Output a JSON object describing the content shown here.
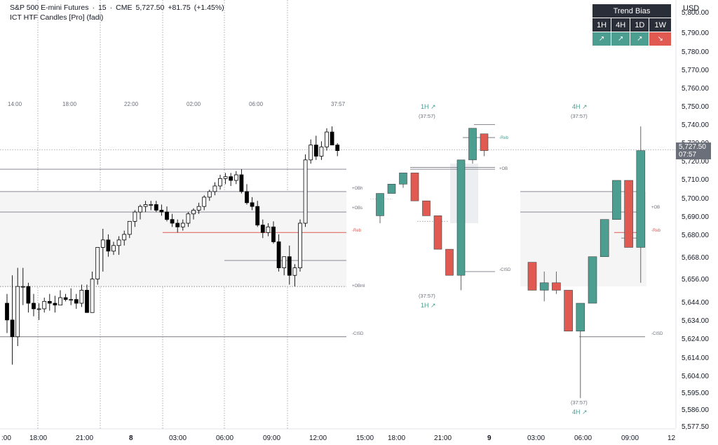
{
  "legend": {
    "symbol": "S&P 500 E-mini Futures",
    "interval": "15",
    "exchange": "CME",
    "last": "5,727.50",
    "change": "+81.75",
    "change_pct": "(+1.45%)",
    "indicator": "ICT HTF Candles [Pro] (fadi)"
  },
  "trend_bias": {
    "title": "Trend Bias",
    "timeframes": [
      "1H",
      "4H",
      "1D",
      "1W"
    ],
    "arrows": [
      "↗",
      "↗",
      "↗",
      "↘"
    ],
    "states": [
      "up",
      "up",
      "up",
      "down"
    ]
  },
  "price_axis": {
    "currency": "USD",
    "ticks": [
      "5,800.00",
      "5,790.00",
      "5,780.00",
      "5,770.00",
      "5,760.00",
      "5,750.00",
      "5,740.00",
      "5,730.00",
      "5,720.00",
      "5,710.00",
      "5,700.00",
      "5,690.00",
      "5,680.00",
      "5,668.00",
      "5,656.00",
      "5,644.00",
      "5,634.00",
      "5,624.00",
      "5,614.00",
      "5,604.00",
      "5,595.00",
      "5,586.00",
      "5,577.50"
    ],
    "last_price": "5,727.50",
    "countdown": "07:57"
  },
  "time_axis": {
    "ticks": [
      ":00",
      "18:00",
      "21:00",
      "8",
      "03:00",
      "06:00",
      "09:00",
      "12:00",
      "15:00",
      "18:00",
      "21:00",
      "9",
      "03:00",
      "06:00",
      "09:00",
      "12"
    ]
  },
  "top_time_labels": [
    "14:00",
    "18:00",
    "22:00",
    "02:00",
    "06:00",
    "37:57"
  ],
  "level_labels": {
    "obh": "+OBh",
    "obs": "+OBs",
    "reb": "-Reb",
    "obml": "+OBml",
    "cisd": "-CISD",
    "ob": "+OB"
  },
  "htf_panels": [
    {
      "label": "1H ↗",
      "timer": "(37:57)"
    },
    {
      "label": "4H ↗",
      "timer": "(37:57)"
    }
  ],
  "colors": {
    "bull": "#4c9e90",
    "bear": "#e05a52",
    "ltf_candle": "#000000",
    "reb_line": "#e05a52",
    "text_muted": "#6b6f7a"
  },
  "chart_data": {
    "type": "candlestick",
    "title": "S&P 500 E-mini Futures · 15 · CME",
    "ylim": [
      5577.5,
      5800
    ],
    "ltf_candles": [
      [
        5645,
        5650,
        5629,
        5636
      ],
      [
        5636,
        5660,
        5612,
        5627
      ],
      [
        5627,
        5664,
        5622,
        5654
      ],
      [
        5654,
        5664,
        5644,
        5654
      ],
      [
        5654,
        5656,
        5640,
        5645
      ],
      [
        5645,
        5650,
        5638,
        5642
      ],
      [
        5642,
        5645,
        5636,
        5642
      ],
      [
        5642,
        5648,
        5640,
        5646
      ],
      [
        5646,
        5650,
        5641,
        5645
      ],
      [
        5645,
        5649,
        5640,
        5644
      ],
      [
        5644,
        5652,
        5644,
        5648
      ],
      [
        5648,
        5650,
        5646,
        5647
      ],
      [
        5647,
        5653,
        5644,
        5647
      ],
      [
        5647,
        5650,
        5642,
        5645
      ],
      [
        5645,
        5655,
        5643,
        5652
      ],
      [
        5652,
        5655,
        5640,
        5640
      ],
      [
        5640,
        5662,
        5640,
        5658
      ],
      [
        5658,
        5675,
        5655,
        5675
      ],
      [
        5675,
        5685,
        5662,
        5679
      ],
      [
        5679,
        5682,
        5670,
        5673
      ],
      [
        5673,
        5678,
        5671,
        5676
      ],
      [
        5676,
        5681,
        5671,
        5679
      ],
      [
        5679,
        5684,
        5676,
        5682
      ],
      [
        5682,
        5689,
        5680,
        5689
      ],
      [
        5689,
        5695,
        5686,
        5694
      ],
      [
        5694,
        5698,
        5690,
        5697
      ],
      [
        5697,
        5700,
        5694,
        5698
      ],
      [
        5698,
        5700,
        5695,
        5698
      ],
      [
        5698,
        5700,
        5694,
        5695
      ],
      [
        5695,
        5698,
        5692,
        5694
      ],
      [
        5694,
        5697,
        5689,
        5690
      ],
      [
        5690,
        5693,
        5686,
        5688
      ],
      [
        5688,
        5690,
        5683,
        5686
      ],
      [
        5686,
        5690,
        5684,
        5688
      ],
      [
        5688,
        5694,
        5686,
        5693
      ],
      [
        5693,
        5696,
        5690,
        5695
      ],
      [
        5695,
        5699,
        5693,
        5697
      ],
      [
        5697,
        5703,
        5695,
        5702
      ],
      [
        5702,
        5706,
        5700,
        5705
      ],
      [
        5705,
        5710,
        5703,
        5708
      ],
      [
        5708,
        5714,
        5706,
        5712
      ],
      [
        5712,
        5715,
        5709,
        5713
      ],
      [
        5713,
        5715,
        5708,
        5711
      ],
      [
        5711,
        5716,
        5709,
        5714
      ],
      [
        5714,
        5717,
        5704,
        5705
      ],
      [
        5705,
        5709,
        5698,
        5699
      ],
      [
        5699,
        5702,
        5695,
        5697
      ],
      [
        5697,
        5700,
        5686,
        5687
      ],
      [
        5687,
        5690,
        5680,
        5683
      ],
      [
        5683,
        5688,
        5681,
        5686
      ],
      [
        5686,
        5689,
        5677,
        5678
      ],
      [
        5678,
        5682,
        5662,
        5664
      ],
      [
        5664,
        5670,
        5660,
        5670
      ],
      [
        5670,
        5676,
        5655,
        5660
      ],
      [
        5660,
        5666,
        5654,
        5664
      ],
      [
        5664,
        5690,
        5662,
        5688
      ],
      [
        5688,
        5725,
        5686,
        5722
      ],
      [
        5722,
        5733,
        5720,
        5730
      ],
      [
        5730,
        5735,
        5722,
        5724
      ],
      [
        5724,
        5732,
        5722,
        5729
      ],
      [
        5729,
        5739,
        5727,
        5737
      ],
      [
        5737,
        5740,
        5730,
        5730
      ],
      [
        5730,
        5731,
        5724,
        5727
      ]
    ],
    "htf_1h_candles": [
      [
        5692,
        5704,
        5688,
        5704
      ],
      [
        5704,
        5709,
        5704,
        5709
      ],
      [
        5709,
        5715,
        5707,
        5715
      ],
      [
        5715,
        5715,
        5700,
        5700
      ],
      [
        5700,
        5700,
        5692,
        5692
      ],
      [
        5692,
        5692,
        5674,
        5674
      ],
      [
        5674,
        5674,
        5660,
        5660
      ],
      [
        5660,
        5722,
        5652,
        5722
      ],
      [
        5722,
        5739,
        5720,
        5739
      ],
      [
        5736,
        5736,
        5724,
        5727
      ]
    ],
    "htf_4h_candles": [
      [
        5667,
        5667,
        5652,
        5652
      ],
      [
        5652,
        5662,
        5646,
        5656
      ],
      [
        5656,
        5662,
        5650,
        5652
      ],
      [
        5652,
        5652,
        5630,
        5630
      ],
      [
        5630,
        5645,
        5594,
        5645
      ],
      [
        5645,
        5670,
        5645,
        5670
      ],
      [
        5670,
        5690,
        5670,
        5690
      ],
      [
        5690,
        5711,
        5690,
        5711
      ],
      [
        5711,
        5711,
        5675,
        5675
      ],
      [
        5675,
        5740,
        5656,
        5727
      ]
    ]
  }
}
